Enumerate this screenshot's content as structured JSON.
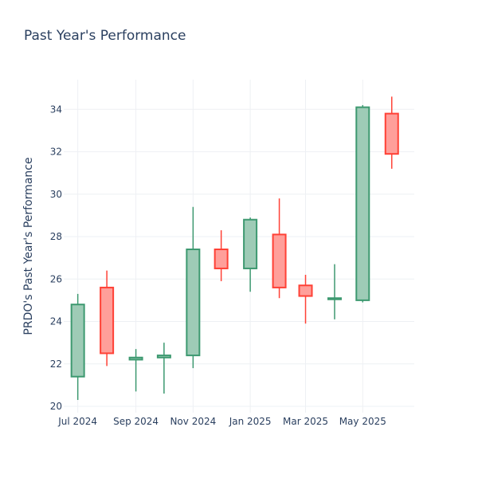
{
  "chart_data": {
    "type": "candlestick",
    "title": "Past Year's Performance",
    "xlabel": "",
    "ylabel": "PRDO's Past Year's Performance",
    "ylim": [
      19.7,
      35.4
    ],
    "yticks": [
      20,
      22,
      24,
      26,
      28,
      30,
      32,
      34
    ],
    "xticks": [
      {
        "date": "2024-07-01",
        "label": "Jul 2024"
      },
      {
        "date": "2024-09-01",
        "label": "Sep 2024"
      },
      {
        "date": "2024-11-01",
        "label": "Nov 2024"
      },
      {
        "date": "2025-01-01",
        "label": "Jan 2025"
      },
      {
        "date": "2025-03-01",
        "label": "Mar 2025"
      },
      {
        "date": "2025-05-01",
        "label": "May 2025"
      }
    ],
    "xlim": [
      "2024-06-16",
      "2025-06-25"
    ],
    "grid": true,
    "colors": {
      "increasing": "#3d9970",
      "decreasing": "#ff4136",
      "increasing_fill": "#9ecbb6",
      "decreasing_fill": "#ff9f9a"
    },
    "series": [
      {
        "date": "2024-07-01",
        "open": 21.4,
        "high": 25.3,
        "low": 20.3,
        "close": 24.8
      },
      {
        "date": "2024-08-01",
        "open": 25.6,
        "high": 26.4,
        "low": 21.9,
        "close": 22.5
      },
      {
        "date": "2024-09-01",
        "open": 22.2,
        "high": 22.7,
        "low": 20.7,
        "close": 22.3
      },
      {
        "date": "2024-10-01",
        "open": 22.3,
        "high": 23.0,
        "low": 20.6,
        "close": 22.4
      },
      {
        "date": "2024-11-01",
        "open": 22.4,
        "high": 29.4,
        "low": 21.8,
        "close": 27.4
      },
      {
        "date": "2024-12-01",
        "open": 27.4,
        "high": 28.3,
        "low": 25.9,
        "close": 26.5
      },
      {
        "date": "2025-01-01",
        "open": 26.5,
        "high": 28.9,
        "low": 25.4,
        "close": 28.8
      },
      {
        "date": "2025-02-01",
        "open": 28.1,
        "high": 29.8,
        "low": 25.1,
        "close": 25.6
      },
      {
        "date": "2025-03-01",
        "open": 25.7,
        "high": 26.2,
        "low": 23.9,
        "close": 25.2
      },
      {
        "date": "2025-04-01",
        "open": 25.1,
        "high": 26.7,
        "low": 24.1,
        "close": 25.1
      },
      {
        "date": "2025-05-01",
        "open": 25.0,
        "high": 34.2,
        "low": 24.9,
        "close": 34.1
      },
      {
        "date": "2025-06-01",
        "open": 33.8,
        "high": 34.6,
        "low": 31.2,
        "close": 31.9
      }
    ]
  }
}
